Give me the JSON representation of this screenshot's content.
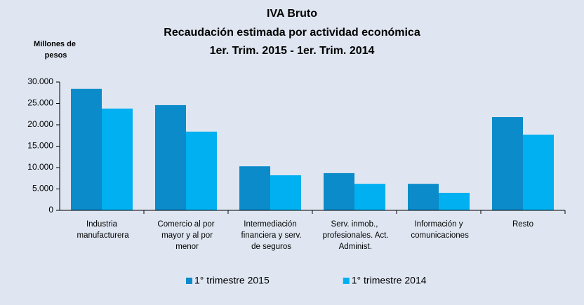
{
  "chart_data": {
    "type": "bar",
    "title": [
      "IVA Bruto",
      "Recaudación estimada por actividad económica",
      "1er. Trim. 2015 - 1er. Trim. 2014"
    ],
    "y_label": "Millones de pesos",
    "categories": [
      "Industria manufacturera",
      "Comercio al por mayor y al por menor",
      "Intermediación financiera y serv. de seguros",
      "Serv. inmob., profesionales. Act. Administ.",
      "Información y comunicaciones",
      "Resto"
    ],
    "series": [
      {
        "name": "1° trimestre 2015",
        "color": "#0b8bc9",
        "values": [
          28400,
          24600,
          10300,
          8700,
          6200,
          21800
        ]
      },
      {
        "name": "1° trimestre 2014",
        "color": "#00b0f0",
        "values": [
          23800,
          18400,
          8200,
          6200,
          4100,
          17700
        ]
      }
    ],
    "ylim": [
      0,
      30000
    ],
    "yticks": [
      0,
      {
        "value": 5000,
        "label": "5.000"
      },
      {
        "value": 10000,
        "label": "10.000"
      },
      {
        "value": 15000,
        "label": "15.000"
      },
      {
        "value": 20000,
        "label": "20.000"
      },
      {
        "value": 25000,
        "label": "25.000"
      },
      {
        "value": 30000,
        "label": "30.000"
      }
    ],
    "legend": "bottom"
  }
}
